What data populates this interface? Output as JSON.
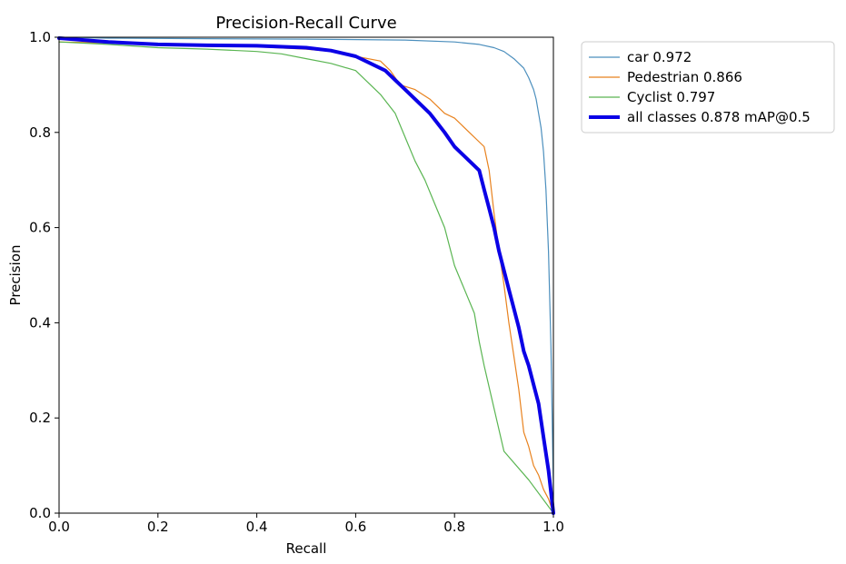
{
  "chart_data": {
    "type": "line",
    "title": "Precision-Recall Curve",
    "xlabel": "Recall",
    "ylabel": "Precision",
    "xlim": [
      0,
      1
    ],
    "ylim": [
      0,
      1
    ],
    "xticks": [
      "0.0",
      "0.2",
      "0.4",
      "0.6",
      "0.8",
      "1.0"
    ],
    "yticks": [
      "0.0",
      "0.2",
      "0.4",
      "0.6",
      "0.8",
      "1.0"
    ],
    "grid": false,
    "legend_position": "top-right outside",
    "series": [
      {
        "name": "car",
        "legend": "car 0.972",
        "color": "#4c8fbd",
        "width_class": "thin",
        "x": [
          0.0,
          0.1,
          0.3,
          0.5,
          0.7,
          0.8,
          0.85,
          0.88,
          0.9,
          0.92,
          0.94,
          0.95,
          0.96,
          0.965,
          0.97,
          0.975,
          0.98,
          0.985,
          0.99,
          0.995,
          1.0,
          1.0
        ],
        "y": [
          1.0,
          0.998,
          0.997,
          0.996,
          0.994,
          0.99,
          0.985,
          0.978,
          0.97,
          0.955,
          0.935,
          0.915,
          0.89,
          0.87,
          0.84,
          0.81,
          0.76,
          0.68,
          0.55,
          0.35,
          0.05,
          0.0
        ]
      },
      {
        "name": "Pedestrian",
        "legend": "Pedestrian 0.866",
        "color": "#e8821e",
        "width_class": "thin",
        "x": [
          0.0,
          0.1,
          0.2,
          0.3,
          0.4,
          0.5,
          0.55,
          0.6,
          0.65,
          0.67,
          0.69,
          0.72,
          0.75,
          0.78,
          0.8,
          0.83,
          0.86,
          0.87,
          0.88,
          0.89,
          0.9,
          0.91,
          0.92,
          0.93,
          0.94,
          0.95,
          0.96,
          0.97,
          0.98,
          0.99,
          1.0
        ],
        "y": [
          0.99,
          0.988,
          0.985,
          0.983,
          0.98,
          0.975,
          0.97,
          0.96,
          0.95,
          0.93,
          0.9,
          0.89,
          0.87,
          0.84,
          0.83,
          0.8,
          0.77,
          0.72,
          0.63,
          0.55,
          0.48,
          0.4,
          0.33,
          0.26,
          0.17,
          0.14,
          0.1,
          0.08,
          0.05,
          0.03,
          0.0
        ]
      },
      {
        "name": "Cyclist",
        "legend": "Cyclist 0.797",
        "color": "#5ab552",
        "width_class": "thin",
        "x": [
          0.0,
          0.1,
          0.2,
          0.3,
          0.4,
          0.45,
          0.5,
          0.55,
          0.6,
          0.63,
          0.65,
          0.68,
          0.7,
          0.72,
          0.74,
          0.76,
          0.78,
          0.8,
          0.82,
          0.84,
          0.85,
          0.86,
          0.88,
          0.9,
          0.95,
          1.0
        ],
        "y": [
          0.99,
          0.985,
          0.978,
          0.975,
          0.97,
          0.965,
          0.955,
          0.945,
          0.93,
          0.9,
          0.88,
          0.84,
          0.79,
          0.74,
          0.7,
          0.65,
          0.6,
          0.52,
          0.47,
          0.42,
          0.36,
          0.31,
          0.22,
          0.13,
          0.07,
          0.0
        ]
      },
      {
        "name": "all classes",
        "legend": "all classes 0.878 mAP@0.5",
        "color": "#0b00e6",
        "width_class": "thick",
        "x": [
          0.0,
          0.1,
          0.2,
          0.3,
          0.4,
          0.5,
          0.55,
          0.6,
          0.63,
          0.66,
          0.68,
          0.7,
          0.72,
          0.75,
          0.78,
          0.8,
          0.83,
          0.85,
          0.86,
          0.87,
          0.88,
          0.89,
          0.9,
          0.91,
          0.92,
          0.93,
          0.94,
          0.95,
          0.96,
          0.97,
          0.98,
          0.99,
          1.0
        ],
        "y": [
          0.998,
          0.99,
          0.985,
          0.983,
          0.982,
          0.978,
          0.972,
          0.96,
          0.945,
          0.93,
          0.91,
          0.89,
          0.87,
          0.84,
          0.8,
          0.77,
          0.74,
          0.72,
          0.68,
          0.64,
          0.6,
          0.55,
          0.51,
          0.47,
          0.43,
          0.39,
          0.34,
          0.31,
          0.27,
          0.23,
          0.16,
          0.09,
          0.0
        ]
      }
    ]
  }
}
